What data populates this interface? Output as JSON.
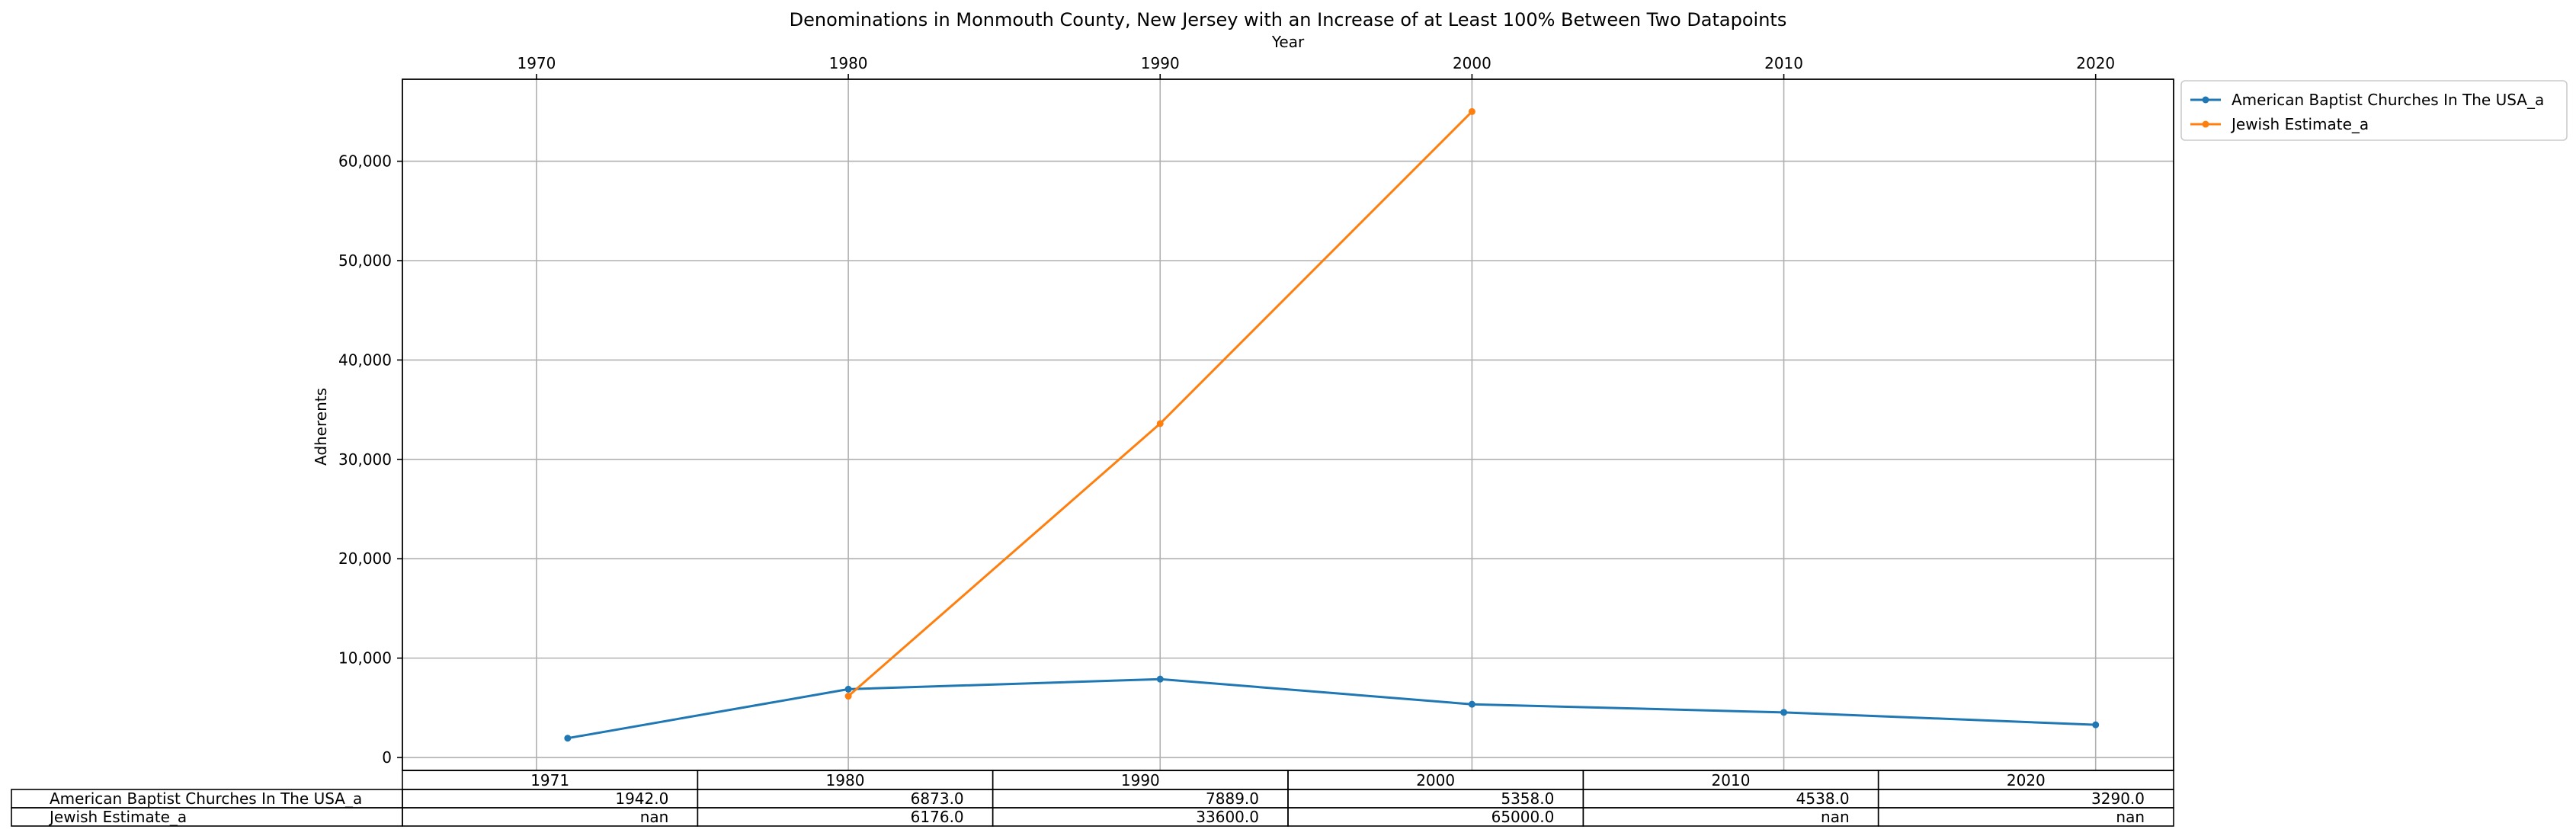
{
  "chart_data": {
    "type": "line",
    "title": "Denominations in Monmouth County, New Jersey with an Increase of at Least 100% Between Two Datapoints",
    "xlabel": "Year",
    "ylabel": "Adherents",
    "x_ticks": [
      "1970",
      "1980",
      "1990",
      "2000",
      "2010",
      "2020"
    ],
    "y_ticks": [
      "0",
      "10,000",
      "20,000",
      "30,000",
      "40,000",
      "50,000",
      "60,000"
    ],
    "xlim": [
      1965.7,
      2022.5
    ],
    "ylim": [
      -1300,
      68250
    ],
    "grid": true,
    "legend_position": "outside upper-right",
    "x": [
      1971,
      1980,
      1990,
      2000,
      2010,
      2020
    ],
    "series": [
      {
        "name": "American Baptist Churches In The USA_a",
        "color": "#1f77b4",
        "values": [
          1942,
          6873,
          7889,
          5358,
          4538,
          3290
        ]
      },
      {
        "name": "Jewish Estimate_a",
        "color": "#ff7f0e",
        "values": [
          null,
          6176,
          33600,
          65000,
          null,
          null
        ]
      }
    ],
    "table": {
      "columns": [
        "1971",
        "1980",
        "1990",
        "2000",
        "2010",
        "2020"
      ],
      "rows": [
        {
          "label": "American Baptist Churches In The USA_a",
          "cells": [
            "1942.0",
            "6873.0",
            "7889.0",
            "5358.0",
            "4538.0",
            "3290.0"
          ]
        },
        {
          "label": "Jewish Estimate_a",
          "cells": [
            "nan",
            "6176.0",
            "33600.0",
            "65000.0",
            "nan",
            "nan"
          ]
        }
      ]
    }
  }
}
